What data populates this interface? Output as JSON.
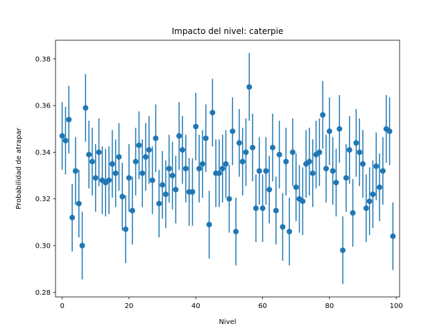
{
  "chart_data": {
    "type": "scatter",
    "title": "Impacto del nivel: caterpie",
    "xlabel": "Nivel",
    "ylabel": "Probabilidad de atrapar",
    "xlim": [
      -2,
      101
    ],
    "ylim": [
      0.278,
      0.388
    ],
    "xticks": [
      0,
      20,
      40,
      60,
      80,
      100
    ],
    "yticks": [
      0.28,
      0.3,
      0.32,
      0.34,
      0.36,
      0.38
    ],
    "ytick_labels": [
      "0.28",
      "0.30",
      "0.32",
      "0.34",
      "0.36",
      "0.38"
    ],
    "error_bar_halfwidth": 0.0145,
    "color": "#1f77b4",
    "grid": false,
    "x": [
      0,
      1,
      2,
      3,
      4,
      5,
      6,
      7,
      8,
      9,
      10,
      11,
      12,
      13,
      14,
      15,
      16,
      17,
      18,
      19,
      20,
      21,
      22,
      23,
      24,
      25,
      26,
      27,
      28,
      29,
      30,
      31,
      32,
      33,
      34,
      35,
      36,
      37,
      38,
      39,
      40,
      41,
      42,
      43,
      44,
      45,
      46,
      47,
      48,
      49,
      50,
      51,
      52,
      53,
      54,
      55,
      56,
      57,
      58,
      59,
      60,
      61,
      62,
      63,
      64,
      65,
      66,
      67,
      68,
      69,
      70,
      71,
      72,
      73,
      74,
      75,
      76,
      77,
      78,
      79,
      80,
      81,
      82,
      83,
      84,
      85,
      86,
      87,
      88,
      89,
      90,
      91,
      92,
      93,
      94,
      95,
      96,
      97,
      98,
      99
    ],
    "y": [
      0.347,
      0.345,
      0.354,
      0.312,
      0.332,
      0.318,
      0.3,
      0.359,
      0.339,
      0.336,
      0.329,
      0.34,
      0.328,
      0.327,
      0.328,
      0.335,
      0.331,
      0.338,
      0.321,
      0.307,
      0.329,
      0.315,
      0.336,
      0.343,
      0.331,
      0.338,
      0.341,
      0.328,
      0.346,
      0.318,
      0.326,
      0.322,
      0.333,
      0.33,
      0.324,
      0.347,
      0.341,
      0.333,
      0.323,
      0.323,
      0.351,
      0.333,
      0.335,
      0.346,
      0.309,
      0.357,
      0.331,
      0.331,
      0.333,
      0.335,
      0.32,
      0.349,
      0.306,
      0.344,
      0.336,
      0.34,
      0.368,
      0.342,
      0.316,
      0.332,
      0.316,
      0.332,
      0.324,
      0.342,
      0.315,
      0.339,
      0.308,
      0.336,
      0.306,
      0.34,
      0.325,
      0.32,
      0.319,
      0.335,
      0.336,
      0.331,
      0.339,
      0.34,
      0.356,
      0.333,
      0.349,
      0.332,
      0.327,
      0.35,
      0.298,
      0.329,
      0.341,
      0.314,
      0.344,
      0.34,
      0.335,
      0.316,
      0.319,
      0.322,
      0.334,
      0.325,
      0.332,
      0.35,
      0.349,
      0.304
    ]
  }
}
